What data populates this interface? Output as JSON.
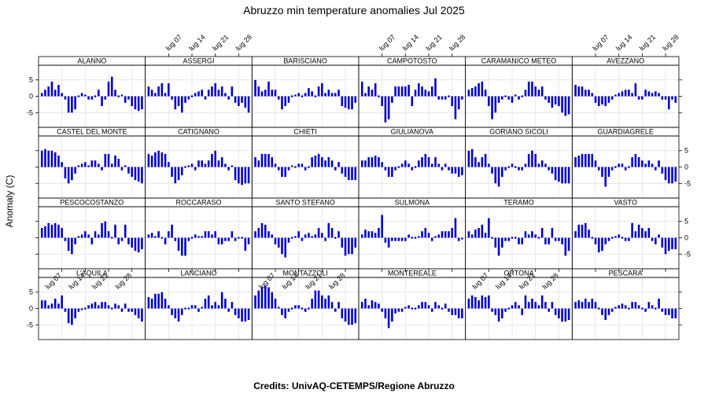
{
  "chart_data": {
    "type": "bar",
    "title": "Abruzzo min temperature anomalies Jul 2025",
    "ylabel": "Anomaly (C)",
    "credits": "Credits: UnivAQ-CETEMPS/Regione Abruzzo",
    "x_ticks": [
      7,
      14,
      21,
      28
    ],
    "x_tick_labels": [
      "lug 07",
      "lug 14",
      "lug 21",
      "lug 28"
    ],
    "y_ticks": [
      -5,
      0,
      5
    ],
    "y_tick_labels": [
      "-5",
      "0",
      "5"
    ],
    "xlim": [
      0,
      32
    ],
    "ylim": [
      -9.5,
      9.5
    ],
    "days": [
      1,
      2,
      3,
      4,
      5,
      6,
      7,
      8,
      9,
      10,
      11,
      12,
      13,
      14,
      15,
      16,
      17,
      18,
      19,
      20,
      21,
      22,
      23,
      24,
      25,
      26,
      27,
      28,
      29,
      30,
      31
    ],
    "bar_color": "#0000cc",
    "grid": true,
    "layout": "6 columns x 4 rows of panels",
    "panels": [
      {
        "name": "PESCOCOSTANZO",
        "values": [
          3,
          3.5,
          4.5,
          4,
          4.5,
          4,
          3,
          -1,
          -4,
          -5,
          -2,
          0.5,
          1,
          2,
          1,
          -2,
          2,
          1,
          4.5,
          5,
          2,
          0,
          4,
          -2,
          -1,
          4,
          -2,
          -3,
          -4,
          -4.5,
          -3.5
        ]
      },
      {
        "name": "ROCCARASO",
        "values": [
          1,
          1.5,
          0.5,
          2,
          0,
          -2,
          2,
          4,
          -1,
          -4,
          -5.5,
          -5.5,
          -1,
          0,
          1,
          0.5,
          0.5,
          2,
          2,
          1,
          2,
          -2,
          -2,
          -1,
          -1,
          2,
          -1,
          0,
          0,
          -4,
          -2
        ]
      },
      {
        "name": "SANTO STEFANO",
        "values": [
          2,
          3,
          4.5,
          4,
          2,
          1,
          -2,
          -3,
          -5,
          -6,
          -1.5,
          0,
          0.5,
          2,
          -1,
          1,
          1.5,
          0.5,
          1,
          3,
          1.5,
          -1,
          4.5,
          3,
          0,
          2,
          -3,
          -5.5,
          -5,
          -5,
          -3
        ]
      },
      {
        "name": "SULMONA",
        "values": [
          1,
          2.5,
          2,
          2,
          1.5,
          3,
          7,
          -1.5,
          -3,
          -1,
          -1,
          -1,
          -1,
          -1,
          1,
          0,
          0,
          0.5,
          2,
          3,
          1.5,
          -1,
          0.5,
          1,
          2,
          2,
          2,
          3,
          6,
          -1,
          -0.5
        ]
      },
      {
        "name": "TERAMO",
        "values": [
          2,
          1,
          2.5,
          3,
          4,
          1.5,
          6,
          0,
          -3,
          -5.5,
          -3,
          -1,
          -1,
          0,
          0,
          -2,
          -2,
          2,
          1,
          2,
          1,
          0,
          3,
          -2,
          -2,
          3,
          -1,
          -1,
          -2,
          -5.5,
          -4
        ]
      },
      {
        "name": "VASTO",
        "values": [
          2,
          4,
          4,
          4.5,
          2.5,
          0,
          -2,
          -4.5,
          -4,
          -2,
          -1,
          0,
          0.5,
          1,
          0,
          -1,
          -1,
          4.5,
          2,
          4,
          3,
          2,
          3,
          -1,
          -2,
          1,
          -3,
          -5,
          -4,
          -3.5,
          -3.5
        ]
      },
      {
        "name": "L'AQUILA",
        "values": [
          2.5,
          2.5,
          1,
          1.5,
          3,
          1.5,
          4,
          -1,
          -4.5,
          -5,
          -3,
          -1,
          -0.5,
          0,
          1,
          1.5,
          2,
          1,
          2,
          2,
          1,
          0,
          1.5,
          1,
          -1,
          1.5,
          -1,
          -1,
          -2,
          -3,
          -4
        ]
      },
      {
        "name": "LANCIANO",
        "values": [
          3.5,
          3,
          4.5,
          4.5,
          5,
          3,
          1,
          -2,
          -3,
          -4,
          -2,
          0,
          0,
          1,
          1,
          -1,
          0.5,
          3,
          4,
          1,
          2,
          1,
          5,
          3,
          -1,
          2,
          -2,
          -3,
          -4,
          -4,
          -3.5
        ]
      },
      {
        "name": "MONTAZZOLI",
        "values": [
          4,
          5.5,
          6.5,
          7,
          6.5,
          5,
          3,
          0.5,
          -2,
          -3,
          -1,
          0,
          1,
          1,
          0,
          -1,
          0,
          3,
          5.5,
          5.5,
          4,
          3,
          4,
          2,
          -1,
          2,
          -3,
          -4,
          -5,
          -5,
          -4.5
        ]
      },
      {
        "name": "MONTEREALE",
        "values": [
          2,
          3,
          1,
          2.5,
          2,
          1.5,
          -1,
          -3,
          -6,
          -4,
          -1.5,
          -1,
          -1,
          0.5,
          1,
          0,
          0,
          1,
          2,
          2,
          1,
          -1,
          2,
          1,
          0,
          1.5,
          -1,
          -2,
          -2,
          -3,
          -3
        ]
      },
      {
        "name": "ORTONA",
        "values": [
          3,
          4,
          3.5,
          2.5,
          4,
          3.5,
          4,
          -1,
          -2,
          -4,
          -3,
          -1,
          0,
          1,
          2,
          1,
          -2,
          4,
          2,
          3,
          2,
          1,
          4,
          2,
          -1,
          2,
          -2,
          -3,
          -4,
          -4,
          -3.5
        ]
      },
      {
        "name": "PESCARA",
        "values": [
          2,
          2.5,
          2,
          3,
          2,
          3,
          2,
          0,
          -2,
          -3.5,
          -2,
          -1,
          0.5,
          1,
          1.5,
          1,
          0,
          2,
          2,
          1,
          0,
          -1,
          2,
          1,
          0,
          3,
          -1,
          -2,
          -2,
          -3,
          -3
        ]
      },
      {
        "name": "CASTEL DEL MONTE",
        "values": [
          5,
          5.5,
          5,
          5,
          4.5,
          3.5,
          1.5,
          -3.5,
          -5,
          -4,
          -2,
          0.5,
          1,
          1.5,
          0.5,
          2,
          2,
          1,
          -1,
          4,
          4,
          1,
          3.5,
          2.5,
          -1,
          0.5,
          -2,
          -3,
          -4,
          -4.5,
          -5
        ]
      },
      {
        "name": "CATIGNANO",
        "values": [
          4,
          3.5,
          4.5,
          5,
          4.5,
          4,
          1.5,
          -3,
          -5,
          -4,
          -2.5,
          0,
          0.5,
          1,
          -1,
          2,
          2,
          1,
          2,
          4,
          5,
          2,
          3,
          1,
          -1,
          0.5,
          -4,
          -5,
          -5.5,
          -5,
          -5
        ]
      },
      {
        "name": "CHIETI",
        "values": [
          3,
          2,
          4,
          4,
          4,
          3,
          1,
          -1,
          -3,
          -3,
          -1,
          0.5,
          0,
          1,
          1,
          -1,
          0,
          3,
          3.5,
          4,
          3,
          2,
          3,
          2,
          -1,
          1.5,
          -2,
          -3,
          -4,
          -4,
          -4
        ]
      },
      {
        "name": "GIULIANOVA",
        "values": [
          2,
          2,
          3,
          3,
          3.5,
          3,
          1.5,
          -1,
          -3,
          -3,
          -1,
          0,
          1,
          2,
          1,
          -1,
          0,
          2,
          3,
          4,
          3,
          1,
          3,
          1,
          -1,
          1,
          -1,
          -2,
          -2,
          -3,
          -2.5
        ]
      },
      {
        "name": "GORIANO SICOLI",
        "values": [
          5,
          5.5,
          3,
          1.5,
          3,
          4,
          1,
          -2,
          -5,
          -6,
          -3,
          -1,
          0,
          1,
          0,
          -1,
          -1,
          1,
          4,
          5,
          4,
          1,
          2,
          1,
          -1,
          -2,
          -4,
          -4.5,
          -5,
          -5,
          -5
        ]
      },
      {
        "name": "GUARDIAGRELE",
        "values": [
          3,
          3.5,
          4,
          4,
          4,
          4,
          2,
          -1,
          -3,
          -6,
          -3,
          -1,
          0,
          1,
          1,
          -1,
          0,
          3,
          4,
          3,
          2,
          1,
          2,
          1,
          -1,
          2,
          -2,
          -4,
          -5,
          -5,
          -4.5
        ]
      },
      {
        "name": "ALANNO",
        "values": [
          1,
          2,
          3,
          4.5,
          2,
          3.5,
          1,
          -1,
          -5,
          -5,
          -4,
          0,
          1,
          0.5,
          -1,
          -1,
          0,
          2,
          -3,
          -1,
          4.5,
          6,
          2,
          0,
          0.5,
          -2,
          -1,
          -3,
          -4,
          -4.5,
          -4
        ]
      },
      {
        "name": "ASSERGI",
        "values": [
          3,
          2,
          1,
          3,
          4,
          1,
          4,
          -1,
          -4,
          -3,
          -5,
          -2,
          -1,
          0,
          1,
          1.5,
          2,
          -1,
          2,
          3,
          4,
          2,
          3,
          1,
          -1,
          3,
          -2,
          -3,
          -2,
          -3.5,
          -5
        ]
      },
      {
        "name": "BARISCIANO",
        "values": [
          5,
          3,
          1.5,
          2,
          4.5,
          2,
          2,
          -1,
          -4,
          -3,
          -2,
          0,
          0.5,
          1,
          0,
          1,
          2.5,
          1.5,
          0,
          3,
          4,
          1,
          2,
          1,
          1,
          2,
          -3,
          -3.5,
          -4,
          -4,
          -2
        ]
      },
      {
        "name": "CAMPOTOSTO",
        "values": [
          4.5,
          1,
          3,
          2,
          4,
          0,
          -3,
          -8,
          -7,
          -2,
          3,
          3,
          3,
          3,
          3.5,
          -3,
          2,
          4,
          3,
          2,
          1.5,
          3,
          5.5,
          -1,
          -1,
          -1,
          0,
          -3,
          -7,
          -4,
          -1
        ]
      },
      {
        "name": "CARAMANICO METEO",
        "values": [
          2,
          2.5,
          3,
          4,
          4.5,
          2,
          -3,
          -7,
          -5,
          -2,
          -1,
          0,
          -1,
          -2,
          0.5,
          -1,
          0,
          2,
          4.5,
          4.5,
          3,
          2,
          3,
          -1,
          -2,
          -3.5,
          -2.5,
          -3,
          -5,
          -6,
          -5.5
        ]
      },
      {
        "name": "AVEZZANO",
        "values": [
          3.5,
          3,
          3,
          2,
          2,
          1,
          -2,
          -3,
          -2.5,
          -3,
          -2,
          -1,
          0.5,
          1,
          1.5,
          2,
          2,
          1,
          4,
          -1,
          -1,
          2,
          1.5,
          1,
          1.5,
          1,
          -1,
          -1,
          -4,
          -1,
          -2
        ]
      }
    ]
  }
}
